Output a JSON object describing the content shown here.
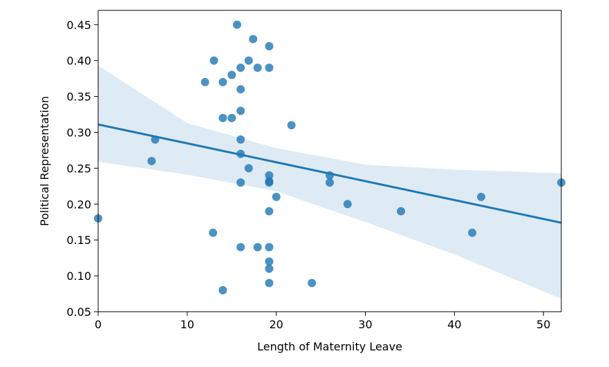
{
  "chart_data": {
    "type": "scatter",
    "title": "",
    "xlabel": "Length of Maternity Leave",
    "ylabel": "Political Representation",
    "xlim": [
      0,
      52
    ],
    "ylim": [
      0.05,
      0.47
    ],
    "x_ticks": [
      0,
      10,
      20,
      30,
      40,
      50
    ],
    "y_ticks": [
      0.05,
      0.1,
      0.15,
      0.2,
      0.25,
      0.3,
      0.35,
      0.4,
      0.45
    ],
    "x_tick_labels": [
      "0",
      "10",
      "20",
      "30",
      "40",
      "50"
    ],
    "y_tick_labels": [
      "0.05",
      "0.10",
      "0.15",
      "0.20",
      "0.25",
      "0.30",
      "0.35",
      "0.40",
      "0.45"
    ],
    "grid": false,
    "point_color": "#1f77b4",
    "band_color": "#1f77b4",
    "points": [
      {
        "x": 15.6,
        "y": 0.45
      },
      {
        "x": 17.4,
        "y": 0.43
      },
      {
        "x": 19.2,
        "y": 0.42
      },
      {
        "x": 13.0,
        "y": 0.4
      },
      {
        "x": 16.9,
        "y": 0.4
      },
      {
        "x": 16.0,
        "y": 0.39
      },
      {
        "x": 17.9,
        "y": 0.39
      },
      {
        "x": 19.2,
        "y": 0.39
      },
      {
        "x": 15.0,
        "y": 0.38
      },
      {
        "x": 12.0,
        "y": 0.37
      },
      {
        "x": 14.0,
        "y": 0.37
      },
      {
        "x": 16.0,
        "y": 0.36
      },
      {
        "x": 16.0,
        "y": 0.33
      },
      {
        "x": 14.0,
        "y": 0.32
      },
      {
        "x": 15.0,
        "y": 0.32
      },
      {
        "x": 21.7,
        "y": 0.31
      },
      {
        "x": 6.4,
        "y": 0.29
      },
      {
        "x": 16.0,
        "y": 0.29
      },
      {
        "x": 16.0,
        "y": 0.27
      },
      {
        "x": 6.0,
        "y": 0.26
      },
      {
        "x": 16.9,
        "y": 0.25
      },
      {
        "x": 19.2,
        "y": 0.24
      },
      {
        "x": 26.0,
        "y": 0.24
      },
      {
        "x": 16.0,
        "y": 0.23
      },
      {
        "x": 19.2,
        "y": 0.23
      },
      {
        "x": 19.2,
        "y": 0.232
      },
      {
        "x": 26.0,
        "y": 0.23
      },
      {
        "x": 52.0,
        "y": 0.23
      },
      {
        "x": 20.0,
        "y": 0.21
      },
      {
        "x": 43.0,
        "y": 0.21
      },
      {
        "x": 28.0,
        "y": 0.2
      },
      {
        "x": 19.2,
        "y": 0.19
      },
      {
        "x": 34.0,
        "y": 0.19
      },
      {
        "x": 0.0,
        "y": 0.18
      },
      {
        "x": 12.9,
        "y": 0.16
      },
      {
        "x": 42.0,
        "y": 0.16
      },
      {
        "x": 16.0,
        "y": 0.14
      },
      {
        "x": 17.9,
        "y": 0.14
      },
      {
        "x": 19.2,
        "y": 0.14
      },
      {
        "x": 19.2,
        "y": 0.12
      },
      {
        "x": 19.2,
        "y": 0.11
      },
      {
        "x": 19.2,
        "y": 0.09
      },
      {
        "x": 24.0,
        "y": 0.09
      },
      {
        "x": 14.0,
        "y": 0.08
      }
    ],
    "regression_line": {
      "x": [
        0,
        52
      ],
      "y": [
        0.311,
        0.174
      ]
    },
    "confidence_band": {
      "x": [
        0,
        10,
        20,
        30,
        40,
        52
      ],
      "lower": [
        0.259,
        0.241,
        0.218,
        0.175,
        0.13,
        0.068
      ],
      "upper": [
        0.393,
        0.313,
        0.278,
        0.255,
        0.248,
        0.243
      ]
    }
  }
}
